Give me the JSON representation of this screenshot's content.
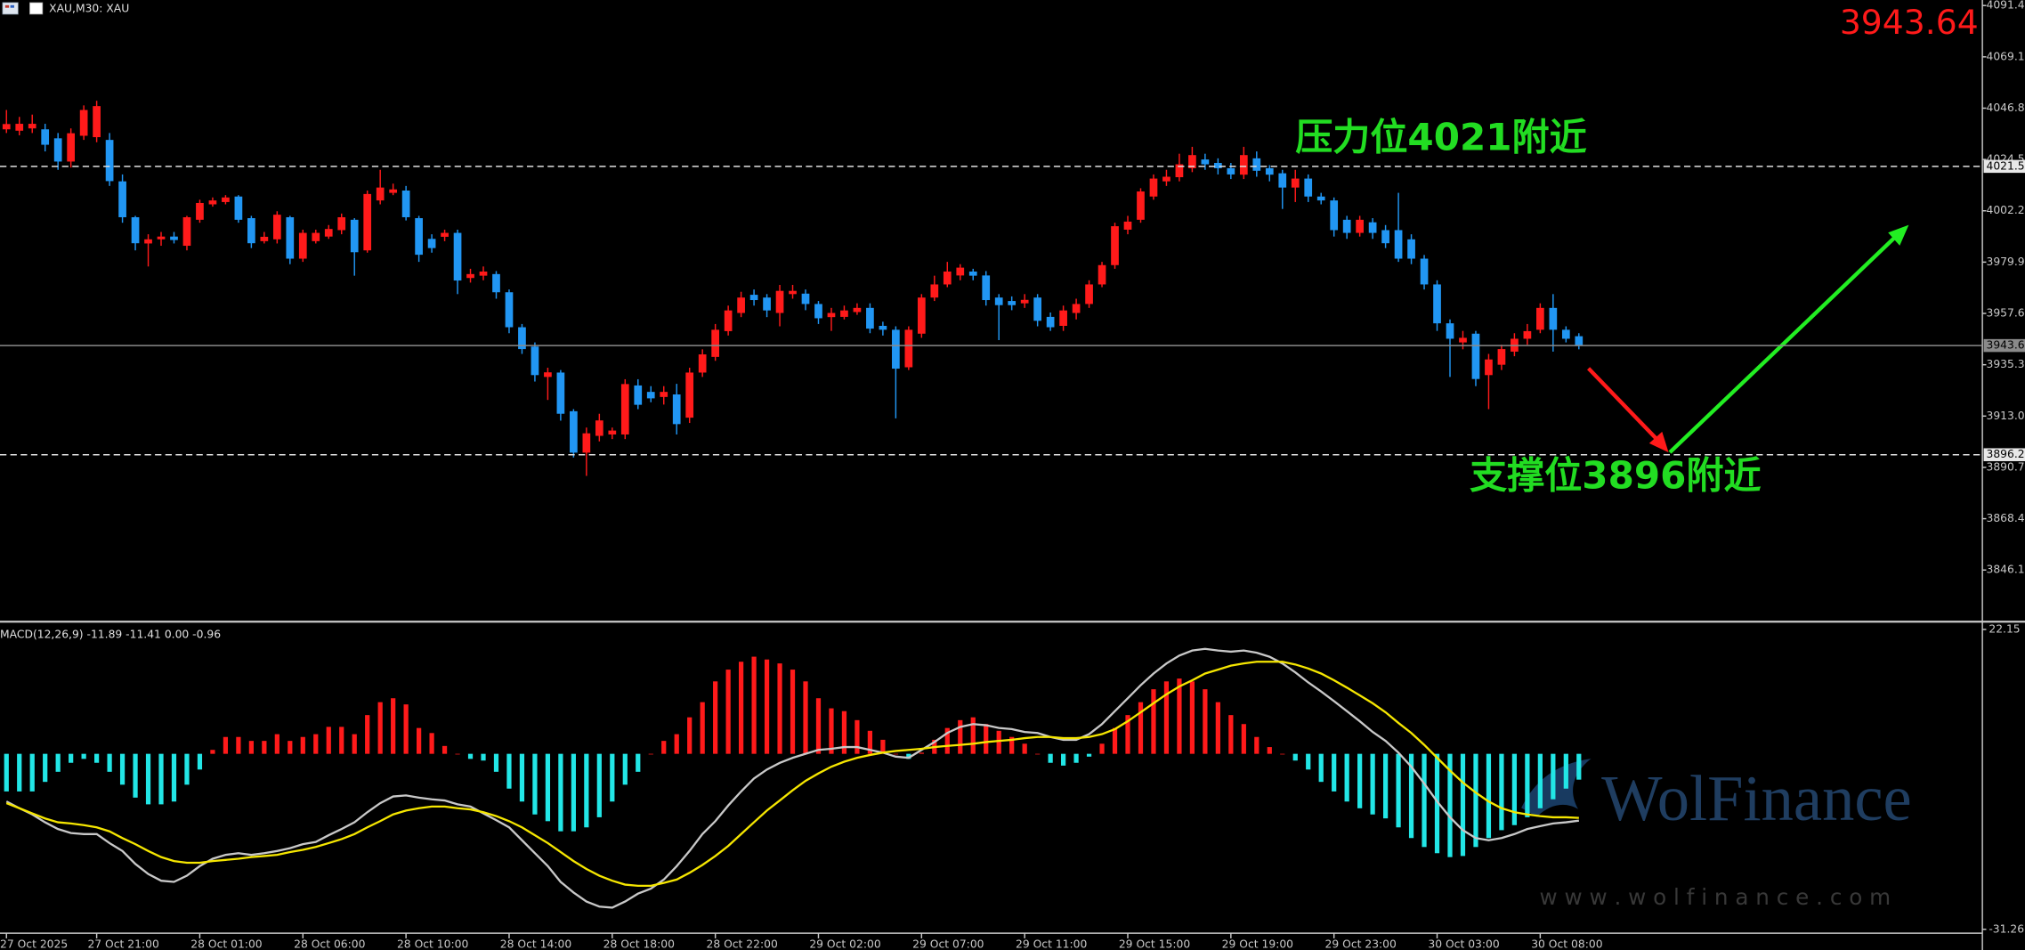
{
  "chart_data": [
    {
      "type": "candlestick",
      "title": "XAU,M30: XAU",
      "categories": [
        "27 Oct 2025",
        null,
        null,
        null,
        null,
        null,
        null,
        "27 Oct 21:00",
        null,
        null,
        null,
        null,
        null,
        null,
        null,
        "28 Oct 01:00",
        null,
        null,
        null,
        null,
        null,
        null,
        null,
        "28 Oct 06:00",
        null,
        null,
        null,
        null,
        null,
        null,
        null,
        "28 Oct 10:00",
        null,
        null,
        null,
        null,
        null,
        null,
        null,
        "28 Oct 14:00",
        null,
        null,
        null,
        null,
        null,
        null,
        null,
        "28 Oct 18:00",
        null,
        null,
        null,
        null,
        null,
        null,
        null,
        "28 Oct 22:00",
        null,
        null,
        null,
        null,
        null,
        null,
        null,
        "29 Oct 02:00",
        null,
        null,
        null,
        null,
        null,
        null,
        null,
        "29 Oct 07:00",
        null,
        null,
        null,
        null,
        null,
        null,
        null,
        "29 Oct 11:00",
        null,
        null,
        null,
        null,
        null,
        null,
        null,
        "29 Oct 15:00",
        null,
        null,
        null,
        null,
        null,
        null,
        null,
        "29 Oct 19:00",
        null,
        null,
        null,
        null,
        null,
        null,
        null,
        "29 Oct 23:00",
        null,
        null,
        null,
        null,
        null,
        null,
        null,
        "30 Oct 03:00",
        null,
        null,
        null,
        null,
        null,
        null,
        null,
        "30 Oct 08:00",
        null,
        null,
        null
      ],
      "open": [
        4037.6,
        4037,
        4038,
        4037.6,
        4033.7,
        4023.6,
        4034.8,
        4034.2,
        4033,
        4015,
        3999.4,
        3988,
        3989.8,
        3991,
        3987,
        3998.3,
        4005,
        4006,
        4008.4,
        3999,
        3989,
        3989.8,
        3999.4,
        3981.4,
        3989,
        3991,
        3993.8,
        3998.3,
        3985,
        4006.7,
        4010,
        4011,
        3999,
        3990,
        3990.9,
        3992.6,
        3973,
        3974,
        3974.7,
        3966.8,
        3951.6,
        3943.2,
        3930,
        3931.9,
        3915.1,
        3897.1,
        3904.4,
        3905,
        3905,
        3926.3,
        3923.5,
        3921.3,
        3922.4,
        3912.3,
        3931.9,
        3938.7,
        3949.9,
        3957.8,
        3965.7,
        3964.5,
        3957.8,
        3966,
        3966.2,
        3961.7,
        3956,
        3956.1,
        3958.2,
        3960,
        3952.2,
        3950.5,
        3934.2,
        3948.8,
        3964.5,
        3970.2,
        3974.1,
        3975.8,
        3974.1,
        3964.5,
        3963,
        3962,
        3964.5,
        3956.1,
        3952.2,
        3957.8,
        3961.7,
        3970.2,
        3978.6,
        3994,
        3998.3,
        4008.4,
        4015,
        4016.8,
        4020.7,
        4024.5,
        4023,
        4020.7,
        4017.9,
        4025,
        4020.7,
        4018.5,
        4012.3,
        4016.2,
        4008.4,
        4006.7,
        3998.3,
        3992.6,
        3997.2,
        3993.8,
        3993.8,
        3989.8,
        3981.4,
        3970.2,
        3953.3,
        3945,
        3948.8,
        3930.8,
        3935.3,
        3941,
        3946.6,
        3950.5,
        3960,
        3950.5,
        3947.7
      ],
      "high": [
        4046,
        4043,
        4044,
        4040,
        4036,
        4038,
        4048,
        4050,
        4036,
        4018,
        4000,
        3992,
        3993,
        3993,
        4000,
        4007,
        4008,
        4009,
        4009,
        4000,
        3993,
        4002,
        4000,
        3994,
        3994,
        3996,
        4001,
        3999,
        4011,
        4020,
        4014,
        4013,
        4000,
        3992,
        3994,
        3994,
        3977,
        3978,
        3976,
        3968,
        3953,
        3945,
        3934,
        3933,
        3916,
        3908,
        3914,
        3908,
        3929,
        3929,
        3926,
        3926,
        3927,
        3934,
        3942,
        3953,
        3961,
        3967,
        3968,
        3966,
        3970,
        3970,
        3968,
        3963,
        3960,
        3961,
        3962,
        3962,
        3954,
        3952,
        3952,
        3966,
        3974,
        3980,
        3979,
        3977,
        3976,
        3966,
        3965,
        3966,
        3966,
        3958,
        3961,
        3964,
        3972,
        3980,
        3997,
        4000,
        4012,
        4018,
        4020,
        4027,
        4030,
        4027,
        4025,
        4023,
        4030,
        4028,
        4022,
        4020,
        4020,
        4018,
        4010,
        4008,
        4000,
        4000,
        3999,
        3996,
        4010,
        3992,
        3983,
        3972,
        3955,
        3950,
        3950,
        3940,
        3944,
        3949,
        3953,
        3962,
        3966,
        3952,
        3949
      ],
      "low": [
        4036,
        4035,
        4036,
        4028,
        4020,
        4021,
        4033,
        4032,
        4013,
        3997,
        3985,
        3978,
        3987,
        3988,
        3985,
        3997,
        4004,
        4005,
        3997,
        3986,
        3988,
        3988,
        3979,
        3980,
        3988,
        3990,
        3992,
        3974,
        3984,
        4005,
        4009,
        3998,
        3980,
        3984,
        3989,
        3966,
        3971,
        3972,
        3964,
        3949,
        3940,
        3928,
        3920,
        3911,
        3895,
        3887,
        3902,
        3903,
        3903,
        3916,
        3919,
        3918,
        3905,
        3910,
        3930,
        3937,
        3948,
        3956,
        3961,
        3956,
        3952,
        3964,
        3959,
        3953,
        3950,
        3955,
        3957,
        3949,
        3948,
        3912,
        3933,
        3947,
        3963,
        3969,
        3972,
        3972,
        3961,
        3946,
        3959,
        3960,
        3952,
        3950,
        3950,
        3955,
        3960,
        3969,
        3977,
        3992,
        3997,
        4007,
        4013,
        4015,
        4019,
        4020,
        4018,
        4016,
        4016,
        4017,
        4015,
        4003,
        4006,
        4006,
        4005,
        3991,
        3990,
        3991,
        3990,
        3986,
        3980,
        3979,
        3968,
        3950,
        3930,
        3942,
        3926,
        3916,
        3933,
        3939,
        3944,
        3949,
        3941,
        3945,
        3942
      ],
      "close": [
        4039.9,
        4040,
        4040,
        4030.9,
        4023.6,
        4035.9,
        4046,
        4047.7,
        4015.1,
        3999.4,
        3988.1,
        3989.8,
        3991,
        3989.5,
        3999.4,
        4005.6,
        4006.7,
        4008,
        3998.3,
        3988.1,
        3990.9,
        4000.5,
        3981.4,
        3992.6,
        3992.6,
        3994.3,
        3999.4,
        3984.2,
        4009.5,
        4012.3,
        4011.5,
        3999.4,
        3983.1,
        3986,
        3992.6,
        3971.9,
        3974.7,
        3975.8,
        3966.8,
        3951.6,
        3942.1,
        3930.8,
        3932,
        3914,
        3897.1,
        3905.5,
        3911.1,
        3906.7,
        3926.9,
        3917.9,
        3920.7,
        3923.5,
        3909.5,
        3931.9,
        3939.8,
        3950.5,
        3958.9,
        3964.5,
        3963.4,
        3958.9,
        3967.4,
        3967.4,
        3961.7,
        3955.5,
        3957.8,
        3958.9,
        3960,
        3951,
        3950.5,
        3933.6,
        3950.5,
        3964.5,
        3970.2,
        3975.8,
        3977.5,
        3974,
        3963.4,
        3961.2,
        3961.2,
        3963.5,
        3954.4,
        3951.6,
        3958.9,
        3961.7,
        3970.2,
        3978.6,
        3995.5,
        3997.5,
        4010.6,
        4016.2,
        4017,
        4022.4,
        4026.4,
        4022.4,
        4020.7,
        4018,
        4026.4,
        4019.6,
        4017.9,
        4012.3,
        4016.2,
        4008.4,
        4006.7,
        3993.8,
        3992.6,
        3998.3,
        3992.6,
        3988.1,
        3981.4,
        3981.4,
        3970.2,
        3953.3,
        3946.6,
        3947,
        3929.1,
        3937.6,
        3942.1,
        3946.6,
        3949.9,
        3960,
        3950.5,
        3946.6,
        3943.64
      ],
      "up_color": "#ff1a1a",
      "down_color": "#2196f3",
      "ylim": [
        3824.2,
        4093.8
      ],
      "yticks": [
        {
          "value": 4091.4,
          "label": "4091.40"
        },
        {
          "value": 4069.1,
          "label": "4069.10"
        },
        {
          "value": 4046.8,
          "label": "4046.80"
        },
        {
          "value": 4024.5,
          "label": "4024.50"
        },
        {
          "value": 4002.2,
          "label": "4002.20"
        },
        {
          "value": 3979.9,
          "label": "3979.90"
        },
        {
          "value": 3957.6,
          "label": "3957.60"
        },
        {
          "value": 3935.3,
          "label": "3935.30"
        },
        {
          "value": 3913,
          "label": "3913.00"
        },
        {
          "value": 3890.7,
          "label": "3890.70"
        },
        {
          "value": 3868.4,
          "label": "3868.40"
        },
        {
          "value": 3846.1,
          "label": "3846.10"
        }
      ],
      "price_lines": [
        {
          "value": 4021.5,
          "label": "4021.50"
        },
        {
          "value": 3896.2,
          "label": "3896.20"
        }
      ],
      "bid": {
        "value": 3943.64,
        "label": "3943.64"
      },
      "annotations": [
        "压力位4021附近",
        "支撑位3896附近"
      ]
    },
    {
      "type": "macd",
      "title": "MACD(12,26,9) -11.89 -11.41 0.00 -0.96",
      "histogram": {
        "up_color": "#ff1a1a",
        "down_color": "#22e6e6",
        "values": [
          -6.7,
          -6.7,
          -6.7,
          -5.0,
          -3.2,
          -1.6,
          -0.9,
          -1.6,
          -3.2,
          -5.5,
          -7.8,
          -9.0,
          -9.0,
          -8.5,
          -5.5,
          -2.8,
          0.7,
          3.0,
          3.0,
          2.3,
          2.3,
          3.5,
          2.3,
          3.0,
          3.5,
          4.8,
          4.8,
          3.5,
          6.9,
          9.2,
          9.9,
          8.8,
          4.6,
          3.7,
          1.4,
          0.0,
          -0.9,
          -1.2,
          -3.2,
          -6.2,
          -8.5,
          -10.8,
          -12.0,
          -13.8,
          -13.8,
          -13.1,
          -11.3,
          -8.5,
          -5.5,
          -3.2,
          0.0,
          2.3,
          3.5,
          6.5,
          9.2,
          12.9,
          15.0,
          16.4,
          17.3,
          16.8,
          16.1,
          15.0,
          12.9,
          9.9,
          8.1,
          7.6,
          6.0,
          4.1,
          2.5,
          0.0,
          -0.9,
          0.2,
          2.5,
          4.6,
          6.0,
          6.5,
          5.3,
          4.1,
          3.0,
          1.8,
          0.0,
          -1.6,
          -2.1,
          -1.6,
          -0.5,
          1.8,
          4.6,
          6.9,
          9.2,
          11.5,
          12.9,
          13.4,
          12.9,
          11.5,
          9.2,
          6.9,
          5.3,
          3.0,
          1.2,
          0.0,
          -1.2,
          -2.8,
          -5.0,
          -6.7,
          -8.5,
          -9.7,
          -10.8,
          -11.5,
          -13.1,
          -15.0,
          -16.6,
          -17.7,
          -18.4,
          -18.2,
          -16.6,
          -15.0,
          -13.6,
          -12.7,
          -11.3,
          -9.7,
          -8.1,
          -6.2,
          -4.6
        ]
      },
      "series": [
        {
          "color": "#c8c8c8",
          "values": [
            -8.5,
            -9.7,
            -10.8,
            -12.2,
            -13.4,
            -14.1,
            -14.3,
            -14.3,
            -15.9,
            -17.3,
            -19.6,
            -21.4,
            -22.6,
            -22.8,
            -21.7,
            -20.0,
            -18.7,
            -18.0,
            -17.7,
            -18.0,
            -17.7,
            -17.3,
            -16.8,
            -16.1,
            -15.7,
            -14.5,
            -13.4,
            -12.2,
            -10.4,
            -8.8,
            -7.6,
            -7.4,
            -7.8,
            -8.1,
            -8.3,
            -9.0,
            -9.4,
            -10.6,
            -11.8,
            -13.1,
            -15.4,
            -17.7,
            -20.0,
            -22.8,
            -24.7,
            -26.3,
            -27.2,
            -27.4,
            -26.3,
            -24.9,
            -24.0,
            -22.4,
            -20.0,
            -17.3,
            -14.3,
            -12.0,
            -9.2,
            -6.7,
            -4.4,
            -2.8,
            -1.6,
            -0.7,
            0.0,
            0.7,
            0.9,
            1.2,
            1.2,
            0.7,
            0.2,
            -0.5,
            -0.7,
            0.7,
            2.1,
            3.7,
            4.8,
            5.3,
            5.1,
            4.6,
            4.4,
            3.9,
            3.7,
            3.0,
            2.5,
            2.5,
            3.5,
            5.3,
            7.6,
            9.9,
            12.2,
            14.3,
            16.1,
            17.5,
            18.4,
            18.7,
            18.4,
            18.2,
            18.4,
            18.0,
            17.3,
            16.1,
            14.5,
            12.7,
            11.1,
            9.4,
            7.6,
            5.8,
            3.9,
            2.3,
            0.2,
            -2.3,
            -5.3,
            -8.5,
            -11.3,
            -13.6,
            -15.0,
            -15.4,
            -15.0,
            -14.3,
            -13.4,
            -12.9,
            -12.4,
            -12.2,
            -11.89
          ]
        },
        {
          "color": "#f5e600",
          "values": [
            -8.8,
            -9.7,
            -10.6,
            -11.5,
            -12.2,
            -12.4,
            -12.7,
            -13.1,
            -13.8,
            -15.0,
            -16.1,
            -17.3,
            -18.4,
            -19.1,
            -19.4,
            -19.4,
            -19.1,
            -18.9,
            -18.7,
            -18.4,
            -18.2,
            -18.0,
            -17.5,
            -17.1,
            -16.6,
            -15.9,
            -15.2,
            -14.3,
            -13.1,
            -12.0,
            -10.8,
            -10.1,
            -9.7,
            -9.4,
            -9.4,
            -9.7,
            -9.9,
            -10.4,
            -11.1,
            -12.0,
            -13.1,
            -14.5,
            -15.9,
            -17.5,
            -19.1,
            -20.5,
            -21.7,
            -22.6,
            -23.3,
            -23.5,
            -23.5,
            -23.0,
            -22.4,
            -21.2,
            -19.8,
            -18.2,
            -16.4,
            -14.3,
            -12.2,
            -10.1,
            -8.3,
            -6.5,
            -4.8,
            -3.5,
            -2.3,
            -1.4,
            -0.7,
            -0.2,
            0.2,
            0.5,
            0.7,
            0.9,
            1.2,
            1.4,
            1.6,
            1.8,
            2.1,
            2.3,
            2.5,
            2.8,
            3.0,
            3.0,
            2.8,
            2.8,
            3.0,
            3.5,
            4.4,
            5.8,
            7.4,
            9.0,
            10.6,
            12.0,
            13.1,
            14.3,
            15.0,
            15.7,
            16.1,
            16.4,
            16.4,
            16.4,
            15.9,
            15.2,
            14.3,
            13.1,
            11.8,
            10.4,
            9.0,
            7.4,
            5.5,
            3.7,
            1.6,
            -0.7,
            -3.0,
            -5.1,
            -6.9,
            -8.5,
            -9.7,
            -10.4,
            -10.8,
            -11.1,
            -11.3,
            -11.3,
            -11.41
          ]
        }
      ],
      "ylim": [
        -31.26,
        22.15
      ],
      "yticks": [
        22.15,
        -31.26
      ]
    }
  ],
  "watermark": {
    "brand": "WolFinance",
    "url": "w w w . w o l f i n a n c e . c o m"
  }
}
